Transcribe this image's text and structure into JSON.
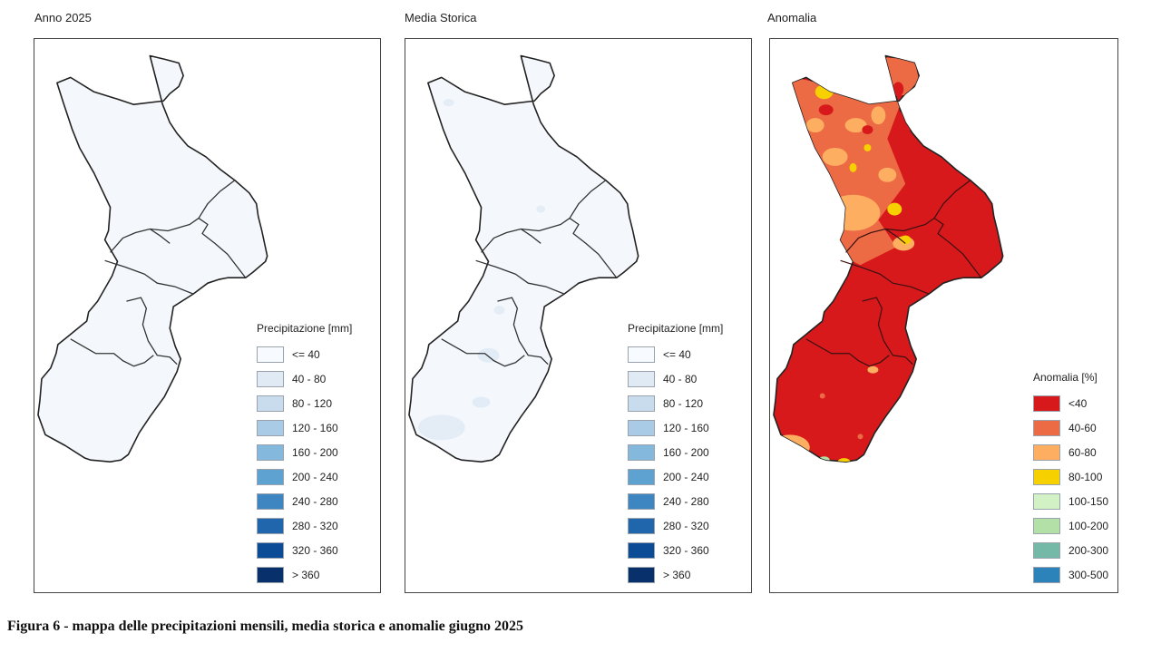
{
  "panels": [
    {
      "title": "Anno 2025",
      "fill": "#f4f8fd",
      "legend": {
        "title": "Precipitazione [mm]",
        "items": [
          {
            "label": "<= 40",
            "color": "#f7fbff"
          },
          {
            "label": "40 - 80",
            "color": "#e0eaf5"
          },
          {
            "label": "80 - 120",
            "color": "#c8dcee"
          },
          {
            "label": "120 - 160",
            "color": "#a9cbe5"
          },
          {
            "label": "160 - 200",
            "color": "#84b8dc"
          },
          {
            "label": "200 - 240",
            "color": "#5ea2d1"
          },
          {
            "label": "240 - 280",
            "color": "#3d86c2"
          },
          {
            "label": "280 - 320",
            "color": "#2066ac"
          },
          {
            "label": "320 - 360",
            "color": "#0c4c96"
          },
          {
            "label": "> 360",
            "color": "#08306b"
          }
        ]
      }
    },
    {
      "title": "Media Storica",
      "fill": "#f1f6fc",
      "legend": {
        "title": "Precipitazione [mm]",
        "items": [
          {
            "label": "<= 40",
            "color": "#f7fbff"
          },
          {
            "label": "40 - 80",
            "color": "#e0eaf5"
          },
          {
            "label": "80 - 120",
            "color": "#c8dcee"
          },
          {
            "label": "120 - 160",
            "color": "#a9cbe5"
          },
          {
            "label": "160 - 200",
            "color": "#84b8dc"
          },
          {
            "label": "200 - 240",
            "color": "#5ea2d1"
          },
          {
            "label": "240 - 280",
            "color": "#3d86c2"
          },
          {
            "label": "280 - 320",
            "color": "#2066ac"
          },
          {
            "label": "320 - 360",
            "color": "#0c4c96"
          },
          {
            "label": "> 360",
            "color": "#08306b"
          }
        ]
      }
    },
    {
      "title": "Anomalia",
      "fill": "#d7191c",
      "legend": {
        "title": "Anomalia [%]",
        "items": [
          {
            "label": "<40",
            "color": "#d7191c"
          },
          {
            "label": "40-60",
            "color": "#ec6b45"
          },
          {
            "label": "60-80",
            "color": "#fdae61"
          },
          {
            "label": "80-100",
            "color": "#f7d000"
          },
          {
            "label": "100-150",
            "color": "#d2f2c6"
          },
          {
            "label": "100-200",
            "color": "#b3e0a6"
          },
          {
            "label": "200-300",
            "color": "#74b9a8"
          },
          {
            "label": "300-500",
            "color": "#2b83ba"
          }
        ]
      }
    }
  ],
  "caption": "Figura 6 - mappa delle precipitazioni mensili, media storica e anomalie giugno 2025"
}
